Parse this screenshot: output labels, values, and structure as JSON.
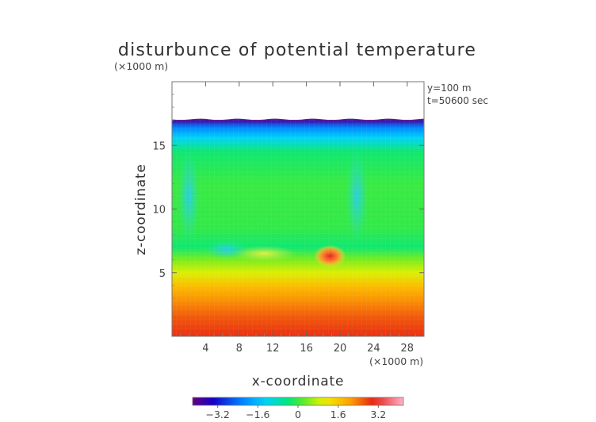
{
  "chart_data": {
    "type": "heatmap",
    "title": "disturbunce of potential temperature",
    "scale_label_top": "(×1000 m)",
    "scale_label_bottom": "(×1000 m)",
    "xlabel": "x-coordinate",
    "ylabel": "z-coordinate",
    "annotation_y": "y=100 m",
    "annotation_t": "t=50600 sec",
    "xlim": [
      0,
      30
    ],
    "ylim": [
      0,
      20
    ],
    "x_ticks": [
      {
        "value": 4,
        "label": "4"
      },
      {
        "value": 8,
        "label": "8"
      },
      {
        "value": 12,
        "label": "12"
      },
      {
        "value": 16,
        "label": "16"
      },
      {
        "value": 20,
        "label": "20"
      },
      {
        "value": 24,
        "label": "24"
      },
      {
        "value": 28,
        "label": "28"
      }
    ],
    "y_ticks": [
      {
        "value": 5,
        "label": "5"
      },
      {
        "value": 10,
        "label": "10"
      },
      {
        "value": 15,
        "label": "15"
      }
    ],
    "data_top_z": 17,
    "colorbar": {
      "range": [
        -4.2,
        4.2
      ],
      "ticks": [
        {
          "value": -3.2,
          "label": "−3.2"
        },
        {
          "value": -1.6,
          "label": "−1.6"
        },
        {
          "value": 0,
          "label": "0"
        },
        {
          "value": 1.6,
          "label": "1.6"
        },
        {
          "value": 3.2,
          "label": "3.2"
        }
      ]
    },
    "field_layers": [
      {
        "z": 0.0,
        "value": 2.9
      },
      {
        "z": 1.5,
        "value": 2.6
      },
      {
        "z": 2.8,
        "value": 2.2
      },
      {
        "z": 4.0,
        "value": 1.7
      },
      {
        "z": 5.0,
        "value": 0.9
      },
      {
        "z": 6.0,
        "value": 0.4
      },
      {
        "z": 7.0,
        "value": -0.3
      },
      {
        "z": 8.5,
        "value": -0.05
      },
      {
        "z": 12.0,
        "value": 0.0
      },
      {
        "z": 14.5,
        "value": -0.3
      },
      {
        "z": 15.6,
        "value": -1.3
      },
      {
        "z": 16.4,
        "value": -2.2
      },
      {
        "z": 17.0,
        "value": -3.8
      }
    ],
    "features": [
      {
        "x": 18.8,
        "z": 6.3,
        "value": 3.3,
        "label": "warm anomaly"
      },
      {
        "x": 11.0,
        "z": 6.5,
        "value": 0.9,
        "label": "warm patch"
      },
      {
        "x": 6.5,
        "z": 6.8,
        "value": -1.1,
        "label": "cool patch"
      },
      {
        "x": 22.0,
        "z": 11.0,
        "value": -1.4,
        "label": "cool plume"
      },
      {
        "x": 2.0,
        "z": 11.0,
        "value": -1.2,
        "label": "cool plume"
      }
    ]
  }
}
